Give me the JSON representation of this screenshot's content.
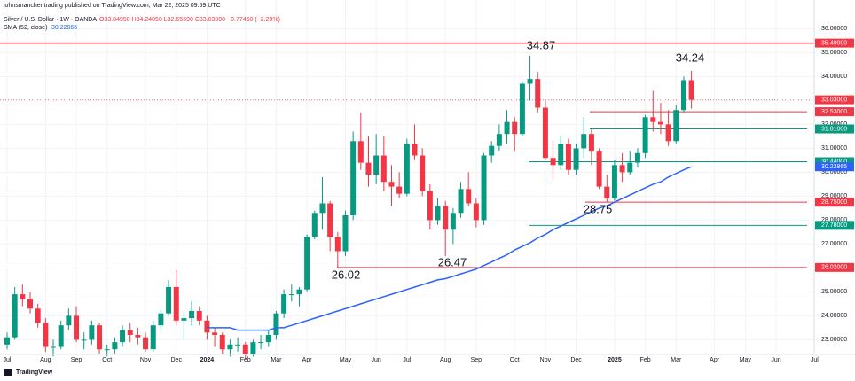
{
  "chart_data": {
    "type": "candlestick",
    "header": {
      "publisher": "johnsmanchentrading published on TradingView.com, Mar 22, 2025 09:59 UTC",
      "symbol": "Silver / U.S. Dollar · 1W · OANDA",
      "ohlc": "O33.84950 H34.24050 L32.65590 C33.03000 −0.77450 (−2.29%)",
      "brand": "TradingView"
    },
    "categories": [
      "Jul",
      null,
      null,
      null,
      null,
      "Aug",
      null,
      null,
      null,
      "Sep",
      null,
      null,
      null,
      "Oct",
      null,
      null,
      null,
      null,
      "Nov",
      null,
      null,
      null,
      "Dec",
      null,
      null,
      null,
      "2024",
      null,
      null,
      null,
      null,
      "Feb",
      null,
      null,
      null,
      "Mar",
      null,
      null,
      null,
      "Apr",
      null,
      null,
      null,
      null,
      "May",
      null,
      null,
      null,
      "Jun",
      null,
      null,
      null,
      "Jul",
      null,
      null,
      null,
      null,
      "Aug",
      null,
      null,
      null,
      "Sep",
      null,
      null,
      null,
      null,
      "Oct",
      null,
      null,
      null,
      "Nov",
      null,
      null,
      null,
      "Dec",
      null,
      null,
      null,
      null,
      "2025",
      null,
      null,
      null,
      "Feb",
      null,
      null,
      null,
      "Mar",
      null,
      null,
      null,
      null,
      "Apr",
      null,
      null,
      null,
      "May",
      null,
      null,
      null,
      "Jun",
      null,
      null,
      null,
      null,
      "Jul"
    ],
    "open": [
      22.8,
      23.1,
      24.9,
      24.7,
      24.3,
      23.7,
      22.7,
      22.7,
      23.6,
      24.0,
      23.0,
      23.0,
      23.6,
      22.6,
      22.6,
      22.9,
      23.4,
      23.2,
      23.1,
      22.6,
      23.6,
      24.1,
      25.2,
      23.8,
      23.9,
      24.2,
      23.8,
      23.3,
      23.2,
      22.6,
      22.8,
      22.8,
      22.4,
      22.9,
      22.9,
      23.2,
      24.1,
      24.9,
      24.9,
      25.1,
      27.3,
      28.3,
      28.7,
      27.3,
      26.7,
      28.2,
      31.3,
      30.4,
      29.9,
      30.7,
      29.6,
      29.4,
      29.1,
      31.2,
      30.7,
      29.2,
      28.0,
      28.6,
      27.6,
      28.3,
      29.3,
      28.7,
      28.0,
      30.7,
      31.1,
      31.6,
      32.1,
      31.6,
      33.7,
      33.9,
      32.7,
      30.6,
      30.3,
      31.2,
      30.1,
      31.0,
      31.6,
      30.9,
      29.4,
      28.9,
      30.3,
      30.0,
      30.4,
      30.8,
      32.3,
      32.1,
      32.0,
      31.3,
      32.6,
      33.8495,
      null,
      null,
      null,
      null,
      null,
      null,
      null,
      null,
      null,
      null,
      null,
      null,
      null,
      null,
      null,
      null
    ],
    "high": [
      23.3,
      25.2,
      25.3,
      25.0,
      24.5,
      23.9,
      23.0,
      23.8,
      24.3,
      24.4,
      23.3,
      23.8,
      23.7,
      22.8,
      23.1,
      23.6,
      23.7,
      23.5,
      23.3,
      23.8,
      24.3,
      25.5,
      25.9,
      24.2,
      24.6,
      24.4,
      24.0,
      23.5,
      23.3,
      23.0,
      23.1,
      22.9,
      23.0,
      23.2,
      23.4,
      24.2,
      25.1,
      25.3,
      25.2,
      27.4,
      28.4,
      29.8,
      28.8,
      27.5,
      28.4,
      31.7,
      32.5,
      31.5,
      31.6,
      31.5,
      30.3,
      30.0,
      31.4,
      32.0,
      31.0,
      29.5,
      28.9,
      28.8,
      28.5,
      29.6,
      30.0,
      28.9,
      30.8,
      31.3,
      32.0,
      32.6,
      32.3,
      33.8,
      34.87,
      34.2,
      33.0,
      31.3,
      31.5,
      31.4,
      31.2,
      32.3,
      31.8,
      31.0,
      29.9,
      30.5,
      30.8,
      30.9,
      31.0,
      32.4,
      33.4,
      32.9,
      32.6,
      32.8,
      34.0,
      34.2405,
      null,
      null,
      null,
      null,
      null,
      null,
      null,
      null,
      null,
      null,
      null,
      null,
      null,
      null,
      null,
      null
    ],
    "low": [
      22.6,
      23.0,
      24.4,
      24.1,
      23.5,
      22.5,
      22.3,
      22.6,
      23.4,
      22.9,
      22.6,
      22.8,
      22.4,
      22.3,
      22.4,
      22.7,
      22.9,
      22.8,
      22.5,
      22.5,
      23.4,
      24.0,
      23.6,
      23.0,
      23.6,
      23.6,
      23.0,
      22.7,
      22.4,
      22.3,
      22.5,
      22.2,
      22.3,
      22.6,
      22.7,
      23.0,
      23.9,
      24.6,
      24.4,
      25.0,
      27.2,
      27.6,
      26.7,
      26.02,
      26.5,
      28.0,
      30.1,
      29.4,
      29.5,
      29.2,
      28.6,
      28.9,
      29.0,
      30.5,
      29.0,
      27.6,
      27.8,
      26.5,
      27.0,
      28.1,
      28.6,
      27.7,
      27.8,
      30.4,
      30.9,
      31.2,
      30.9,
      31.5,
      33.0,
      32.5,
      30.5,
      29.7,
      30.1,
      29.9,
      29.9,
      30.6,
      30.3,
      29.3,
      28.75,
      28.8,
      29.6,
      29.9,
      30.2,
      30.6,
      31.7,
      31.6,
      31.1,
      31.2,
      32.5,
      32.6559,
      null,
      null,
      null,
      null,
      null,
      null,
      null,
      null,
      null,
      null,
      null,
      null,
      null,
      null,
      null,
      null
    ],
    "close": [
      23.1,
      24.9,
      24.7,
      24.3,
      23.7,
      22.7,
      22.7,
      23.6,
      24.0,
      23.0,
      23.0,
      23.6,
      22.6,
      22.6,
      22.9,
      23.4,
      23.2,
      23.1,
      22.6,
      23.6,
      24.1,
      25.2,
      23.8,
      23.9,
      24.2,
      23.8,
      23.3,
      23.2,
      22.6,
      22.8,
      22.8,
      22.4,
      22.9,
      22.9,
      23.2,
      24.1,
      24.9,
      24.9,
      25.1,
      27.3,
      28.3,
      28.7,
      27.3,
      26.7,
      28.2,
      31.3,
      30.4,
      29.9,
      30.7,
      29.6,
      29.4,
      29.1,
      31.2,
      30.7,
      29.2,
      28.0,
      28.6,
      27.6,
      28.3,
      29.3,
      28.7,
      28.0,
      30.7,
      31.1,
      31.6,
      32.1,
      31.6,
      33.7,
      33.9,
      32.7,
      30.6,
      30.3,
      31.2,
      30.1,
      31.0,
      31.6,
      30.9,
      29.4,
      28.9,
      30.3,
      30.0,
      30.4,
      30.8,
      32.3,
      32.1,
      32.0,
      31.3,
      32.6,
      33.8495,
      33.03,
      null,
      null,
      null,
      null,
      null,
      null,
      null,
      null,
      null,
      null,
      null,
      null,
      null,
      null,
      null,
      null
    ],
    "up_color": "#089981",
    "down_color": "#f23645",
    "series": [
      {
        "name": "SMA (52, close)",
        "color": "#2962ff",
        "values": [
          null,
          null,
          null,
          null,
          null,
          null,
          null,
          null,
          null,
          null,
          null,
          null,
          null,
          null,
          null,
          null,
          null,
          null,
          null,
          null,
          null,
          null,
          null,
          null,
          null,
          null,
          23.5,
          23.5,
          23.5,
          23.5,
          23.4,
          23.4,
          23.4,
          23.4,
          23.4,
          23.5,
          23.5,
          23.6,
          23.7,
          23.8,
          23.9,
          24.0,
          24.1,
          24.2,
          24.3,
          24.4,
          24.5,
          24.6,
          24.7,
          24.8,
          24.9,
          25.0,
          25.1,
          25.2,
          25.3,
          25.4,
          25.5,
          25.55,
          25.65,
          25.75,
          25.85,
          25.95,
          26.1,
          26.25,
          26.4,
          26.55,
          26.75,
          26.9,
          27.05,
          27.25,
          27.4,
          27.6,
          27.75,
          27.9,
          28.05,
          28.2,
          28.35,
          28.5,
          28.6,
          28.75,
          28.9,
          29.05,
          29.2,
          29.35,
          29.5,
          29.6,
          29.8,
          29.95,
          30.1,
          30.23,
          null,
          null,
          null,
          null,
          null,
          null,
          null,
          null,
          null,
          null,
          null,
          null,
          null,
          null,
          null,
          null
        ]
      }
    ],
    "levels": [
      {
        "value": 35.4,
        "label": "35.40000",
        "color": "#f23645"
      },
      {
        "value": 33.03,
        "label": "33.03000",
        "color": "#f23645"
      },
      {
        "value": 32.53,
        "label": "32.53000",
        "color": "#f23645"
      },
      {
        "value": 31.81,
        "label": "31.81000",
        "color": "#089981"
      },
      {
        "value": 30.44,
        "label": "30.44000",
        "color": "#089981"
      },
      {
        "value": 30.22865,
        "label": "30.22865",
        "color": "#2962ff"
      },
      {
        "value": 28.75,
        "label": "28.75000",
        "color": "#f23645"
      },
      {
        "value": 27.78,
        "label": "27.78000",
        "color": "#089981"
      },
      {
        "value": 26.02,
        "label": "26.02000",
        "color": "#f23645"
      }
    ],
    "annotations": [
      "34.87",
      "34.24",
      "28.75",
      "26.02",
      "26.47"
    ],
    "ylim": [
      22.2,
      37.2
    ],
    "yticks": [
      {
        "value": 23,
        "label": "23.00000"
      },
      {
        "value": 24,
        "label": "24.00000"
      },
      {
        "value": 25,
        "label": "25.00000"
      },
      {
        "value": 26,
        "label": "26.00000"
      },
      {
        "value": 27,
        "label": "27.00000"
      },
      {
        "value": 28,
        "label": "28.00000"
      },
      {
        "value": 29,
        "label": "29.00000"
      },
      {
        "value": 30,
        "label": "30.00000"
      },
      {
        "value": 31,
        "label": "31.00000"
      },
      {
        "value": 32,
        "label": "32.00000"
      },
      {
        "value": 33,
        "label": "33.00000"
      },
      {
        "value": 34,
        "label": "34.00000"
      },
      {
        "value": 35,
        "label": "35.00000"
      },
      {
        "value": 36,
        "label": "36.00000"
      }
    ],
    "grid": true
  }
}
